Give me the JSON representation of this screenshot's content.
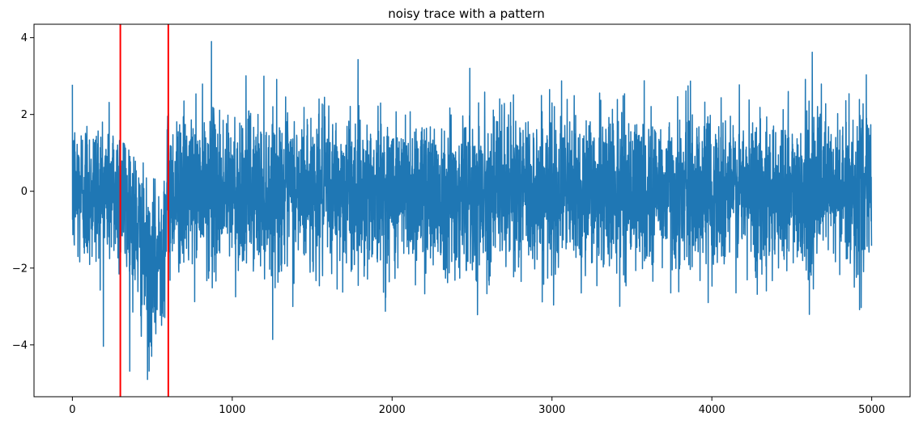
{
  "chart_data": {
    "type": "line",
    "title": "noisy trace with a pattern",
    "xlabel": "",
    "ylabel": "",
    "xlim": [
      -240,
      5240
    ],
    "ylim": [
      -5.35,
      4.35
    ],
    "x_ticks": [
      0,
      1000,
      2000,
      3000,
      4000,
      5000
    ],
    "x_tick_labels": [
      "0",
      "1000",
      "2000",
      "3000",
      "4000",
      "5000"
    ],
    "y_ticks": [
      -4,
      -2,
      0,
      2,
      4
    ],
    "y_tick_labels": [
      "−4",
      "−2",
      "0",
      "2",
      "4"
    ],
    "grid": false,
    "series": [
      {
        "color": "#1f77b4",
        "n_points": 5000,
        "x_start": 0,
        "x_end": 4999,
        "noise_std": 1.0,
        "baseline_mean": 0,
        "pattern": {
          "x": [
            300,
            350,
            400,
            450,
            480,
            520,
            560,
            600
          ],
          "y_mean": [
            0,
            -0.4,
            -0.9,
            -1.8,
            -2.2,
            -2.0,
            -1.4,
            0
          ]
        },
        "max": {
          "x": 870,
          "y": 3.9
        },
        "min": {
          "x": 470,
          "y": -4.9
        }
      }
    ],
    "vlines": [
      {
        "x": 300,
        "color": "#ff0000"
      },
      {
        "x": 600,
        "color": "#ff0000"
      }
    ]
  }
}
